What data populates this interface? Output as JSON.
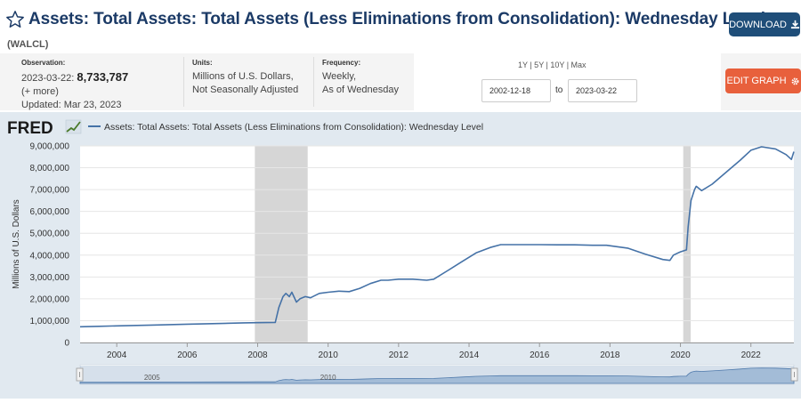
{
  "header": {
    "title": "Assets: Total Assets: Total Assets (Less Eliminations from Consolidation): Wednesday Level",
    "series_id": "(WALCL)",
    "download_label": "DOWNLOAD"
  },
  "meta": {
    "observation_label": "Observation:",
    "observation_date": "2023-03-22:",
    "observation_value": "8,733,787",
    "more": "(+ more)",
    "updated": "Updated: Mar 23, 2023",
    "units_label": "Units:",
    "units_line1": "Millions of U.S. Dollars,",
    "units_line2": "Not Seasonally Adjusted",
    "frequency_label": "Frequency:",
    "frequency_line1": "Weekly,",
    "frequency_line2": "As of Wednesday"
  },
  "range": {
    "options": "1Y | 5Y | 10Y | Max",
    "start": "2002-12-18",
    "to": "to",
    "end": "2023-03-22"
  },
  "edit_label": "EDIT GRAPH",
  "colors": {
    "line": "#4572a7",
    "recession": "#d6d6d6",
    "accent": "#e8603c",
    "title": "#1b3a66"
  },
  "chart_data": {
    "type": "line",
    "logo": "FRED",
    "legend": "Assets: Total Assets: Total Assets (Less Eliminations from Consolidation): Wednesday Level",
    "ylabel": "Millions of U.S. Dollars",
    "xlabel": "",
    "xlim": [
      2002.96,
      2023.22
    ],
    "ylim": [
      0,
      9000000
    ],
    "yticks": [
      0,
      1000000,
      2000000,
      3000000,
      4000000,
      5000000,
      6000000,
      7000000,
      8000000,
      9000000
    ],
    "ytick_labels": [
      "0",
      "1,000,000",
      "2,000,000",
      "3,000,000",
      "4,000,000",
      "5,000,000",
      "6,000,000",
      "7,000,000",
      "8,000,000",
      "9,000,000"
    ],
    "xticks": [
      2004,
      2006,
      2008,
      2010,
      2012,
      2014,
      2016,
      2018,
      2020,
      2022
    ],
    "xtick_labels": [
      "2004",
      "2006",
      "2008",
      "2010",
      "2012",
      "2014",
      "2016",
      "2018",
      "2020",
      "2022"
    ],
    "recessions": [
      [
        2007.92,
        2009.42
      ],
      [
        2020.08,
        2020.29
      ]
    ],
    "navigator_labels": [
      "2005",
      "2010"
    ],
    "navigator_label_years": [
      2005,
      2010
    ],
    "series": [
      {
        "name": "WALCL",
        "x": [
          2002.96,
          2003.5,
          2004,
          2005,
          2006,
          2007,
          2007.6,
          2008.0,
          2008.5,
          2008.6,
          2008.72,
          2008.8,
          2008.9,
          2008.97,
          2009.1,
          2009.2,
          2009.35,
          2009.5,
          2009.75,
          2010.0,
          2010.3,
          2010.6,
          2010.9,
          2011.2,
          2011.5,
          2011.7,
          2012.0,
          2012.4,
          2012.8,
          2013.0,
          2013.4,
          2013.8,
          2014.2,
          2014.6,
          2014.9,
          2015.5,
          2016.0,
          2016.5,
          2017.0,
          2017.5,
          2017.9,
          2018.5,
          2019.0,
          2019.5,
          2019.7,
          2019.8,
          2020.0,
          2020.17,
          2020.22,
          2020.3,
          2020.4,
          2020.45,
          2020.6,
          2020.9,
          2021.3,
          2021.7,
          2022.0,
          2022.3,
          2022.7,
          2023.0,
          2023.15,
          2023.22
        ],
        "values": [
          720000,
          740000,
          760000,
          800000,
          840000,
          870000,
          900000,
          910000,
          920000,
          1600000,
          2100000,
          2250000,
          2100000,
          2300000,
          1850000,
          2000000,
          2100000,
          2050000,
          2250000,
          2300000,
          2350000,
          2330000,
          2480000,
          2700000,
          2850000,
          2850000,
          2900000,
          2900000,
          2850000,
          2900000,
          3300000,
          3700000,
          4100000,
          4350000,
          4480000,
          4480000,
          4480000,
          4470000,
          4470000,
          4450000,
          4450000,
          4320000,
          4050000,
          3800000,
          3760000,
          4000000,
          4150000,
          4240000,
          5300000,
          6500000,
          7000000,
          7150000,
          6950000,
          7250000,
          7800000,
          8350000,
          8800000,
          8960000,
          8860000,
          8600000,
          8380000,
          8733787
        ]
      }
    ]
  }
}
